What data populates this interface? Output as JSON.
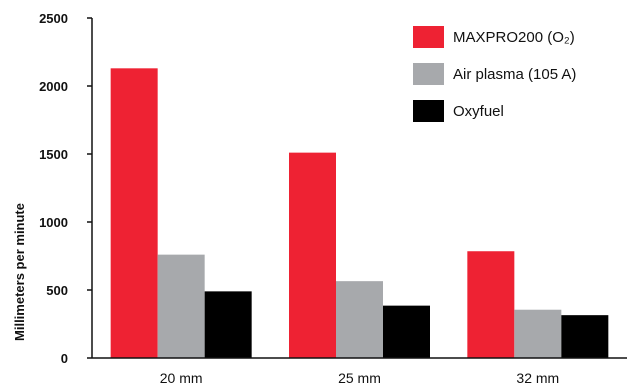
{
  "chart_data": {
    "type": "bar",
    "categories": [
      "20 mm",
      "25 mm",
      "32 mm"
    ],
    "series": [
      {
        "name": "MAXPRO200 (O₂)",
        "values": [
          2130,
          1510,
          785
        ],
        "color": "#ee2233"
      },
      {
        "name": "Air plasma (105 A)",
        "values": [
          760,
          565,
          355
        ],
        "color": "#a7a9ac"
      },
      {
        "name": "Oxyfuel",
        "values": [
          490,
          385,
          315
        ],
        "color": "#000000"
      }
    ],
    "title": "",
    "xlabel": "",
    "ylabel": "Millimeters per minute",
    "ylim": [
      0,
      2500
    ],
    "yticks": [
      0,
      500,
      1000,
      1500,
      2000,
      2500
    ],
    "grid": false,
    "legend_position": "top-right"
  }
}
